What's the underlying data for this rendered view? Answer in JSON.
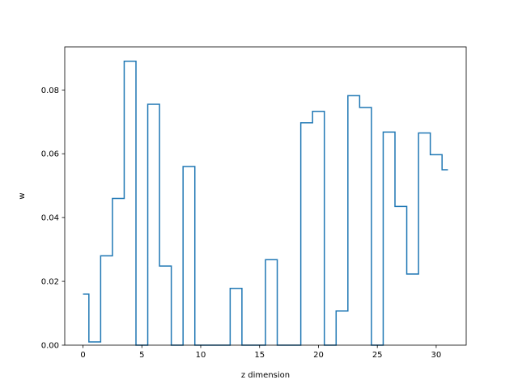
{
  "chart_data": {
    "type": "line",
    "drawstyle": "steps-mid",
    "title": "",
    "xlabel": "z dimension",
    "ylabel": "w",
    "xlim": [
      -1.55,
      32.55
    ],
    "ylim": [
      0.0,
      0.0935
    ],
    "xticks": [
      0,
      5,
      10,
      15,
      20,
      25,
      30
    ],
    "xtick_labels": [
      "0",
      "5",
      "10",
      "15",
      "20",
      "25",
      "30"
    ],
    "yticks": [
      0.0,
      0.02,
      0.04,
      0.06,
      0.08
    ],
    "ytick_labels": [
      "0.00",
      "0.02",
      "0.04",
      "0.06",
      "0.08"
    ],
    "grid": false,
    "series": [
      {
        "color": "#1f77b4",
        "x": [
          0,
          1,
          2,
          3,
          4,
          5,
          6,
          7,
          8,
          9,
          10,
          11,
          12,
          13,
          14,
          15,
          16,
          17,
          18,
          19,
          20,
          21,
          22,
          23,
          24,
          25,
          26,
          27,
          28,
          29,
          30,
          31
        ],
        "values": [
          0.016,
          0.001,
          0.028,
          0.046,
          0.089,
          0.0,
          0.0755,
          0.0248,
          0.0,
          0.056,
          0.0,
          0.0,
          0.0,
          0.0178,
          0.0,
          0.0,
          0.0268,
          0.0,
          0.0,
          0.0697,
          0.0733,
          0.0,
          0.0107,
          0.0782,
          0.0745,
          0.0,
          0.0668,
          0.0435,
          0.0223,
          0.0665,
          0.0597,
          0.055
        ]
      }
    ]
  }
}
